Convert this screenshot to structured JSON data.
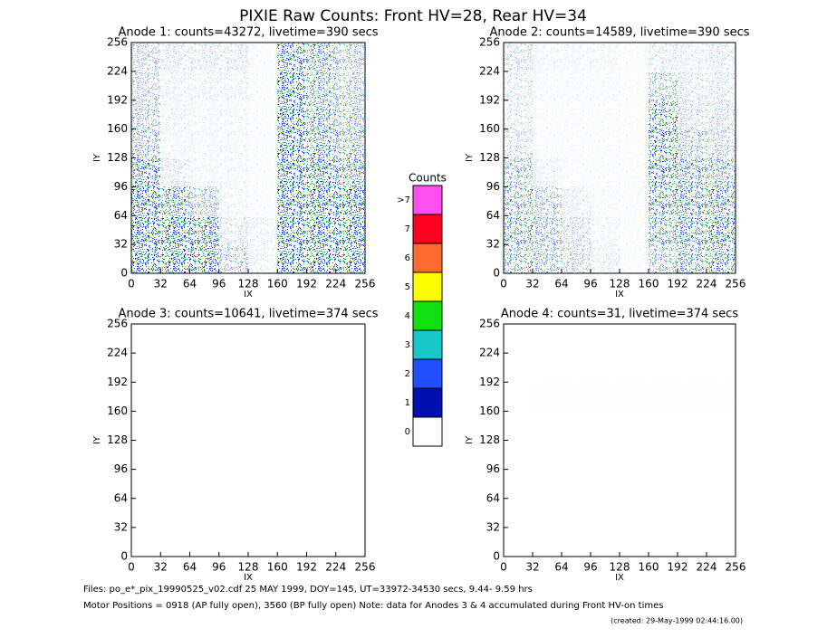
{
  "title": "PIXIE Raw Counts:  Front HV=28, Rear HV=34",
  "chart_data": [
    {
      "type": "heatmap",
      "title": "Anode 1: counts=43272, livetime=390 secs",
      "xlabel": "IX",
      "ylabel": "IY",
      "xlim": [
        0,
        256
      ],
      "ylim": [
        0,
        256
      ],
      "xticks": [
        0,
        32,
        64,
        96,
        128,
        160,
        192,
        224,
        256
      ],
      "yticks": [
        0,
        32,
        64,
        96,
        128,
        160,
        192,
        224,
        256
      ],
      "density": [
        [
          0.25,
          0.15,
          0.15,
          0.15,
          0.05,
          0.55,
          0.45,
          0.3
        ],
        [
          0.25,
          0.1,
          0.1,
          0.1,
          0.05,
          0.6,
          0.4,
          0.3
        ],
        [
          0.3,
          0.1,
          0.08,
          0.08,
          0.05,
          0.7,
          0.45,
          0.35
        ],
        [
          0.35,
          0.08,
          0.08,
          0.08,
          0.05,
          0.8,
          0.5,
          0.4
        ],
        [
          0.55,
          0.15,
          0.08,
          0.08,
          0.05,
          0.85,
          0.6,
          0.5
        ],
        [
          0.65,
          0.5,
          0.3,
          0.08,
          0.05,
          0.85,
          0.75,
          0.65
        ],
        [
          0.8,
          0.65,
          0.55,
          0.15,
          0.1,
          0.9,
          0.8,
          0.75
        ],
        [
          0.8,
          0.7,
          0.6,
          0.3,
          0.1,
          0.9,
          0.85,
          0.8
        ]
      ]
    },
    {
      "type": "heatmap",
      "title": "Anode 2: counts=14589, livetime=390 secs",
      "xlabel": "IX",
      "ylabel": "IY",
      "xlim": [
        0,
        256
      ],
      "ylim": [
        0,
        256
      ],
      "xticks": [
        0,
        32,
        64,
        96,
        128,
        160,
        192,
        224,
        256
      ],
      "yticks": [
        0,
        32,
        64,
        96,
        128,
        160,
        192,
        224,
        256
      ],
      "density": [
        [
          0.2,
          0.08,
          0.08,
          0.08,
          0.04,
          0.15,
          0.12,
          0.15
        ],
        [
          0.15,
          0.06,
          0.06,
          0.06,
          0.04,
          0.3,
          0.15,
          0.15
        ],
        [
          0.15,
          0.05,
          0.05,
          0.05,
          0.04,
          0.5,
          0.2,
          0.2
        ],
        [
          0.2,
          0.05,
          0.05,
          0.05,
          0.04,
          0.55,
          0.3,
          0.25
        ],
        [
          0.35,
          0.1,
          0.05,
          0.05,
          0.05,
          0.55,
          0.45,
          0.4
        ],
        [
          0.4,
          0.3,
          0.12,
          0.06,
          0.05,
          0.5,
          0.5,
          0.5
        ],
        [
          0.45,
          0.35,
          0.2,
          0.08,
          0.05,
          0.45,
          0.5,
          0.55
        ],
        [
          0.4,
          0.35,
          0.25,
          0.12,
          0.05,
          0.35,
          0.45,
          0.5
        ]
      ]
    },
    {
      "type": "heatmap",
      "title": "Anode 3: counts=10641, livetime=374 secs",
      "xlabel": "IX",
      "ylabel": "IY",
      "xlim": [
        0,
        256
      ],
      "ylim": [
        0,
        256
      ],
      "xticks": [
        0,
        32,
        64,
        96,
        128,
        160,
        192,
        224,
        256
      ],
      "yticks": [
        0,
        32,
        64,
        96,
        128,
        160,
        192,
        224,
        256
      ],
      "density": [
        [
          0,
          0,
          0,
          0,
          0,
          0,
          0,
          0
        ],
        [
          0,
          0,
          0,
          0,
          0,
          0,
          0,
          0
        ],
        [
          0,
          0,
          0,
          0,
          0,
          0,
          0,
          0
        ],
        [
          0,
          0,
          0,
          0,
          0,
          0,
          0,
          0
        ],
        [
          0,
          0,
          0,
          0,
          0,
          0,
          0,
          0
        ],
        [
          0,
          0,
          0,
          0,
          0,
          0,
          0,
          0
        ],
        [
          0,
          0,
          0,
          0,
          0,
          0,
          0,
          0
        ],
        [
          0,
          0,
          0,
          0,
          0,
          0,
          0,
          0
        ]
      ]
    },
    {
      "type": "heatmap",
      "title": "Anode 4: counts=31, livetime=374 secs",
      "xlabel": "IX",
      "ylabel": "IY",
      "xlim": [
        0,
        256
      ],
      "ylim": [
        0,
        256
      ],
      "xticks": [
        0,
        32,
        64,
        96,
        128,
        160,
        192,
        224,
        256
      ],
      "yticks": [
        0,
        32,
        64,
        96,
        128,
        160,
        192,
        224,
        256
      ],
      "density": [
        [
          0,
          0,
          0,
          0,
          0,
          0,
          0,
          0
        ],
        [
          0,
          0,
          0,
          0,
          0,
          0,
          0,
          0
        ],
        [
          0,
          0.02,
          0.02,
          0.02,
          0.02,
          0.02,
          0.02,
          0.02
        ],
        [
          0,
          0,
          0,
          0,
          0,
          0,
          0,
          0
        ],
        [
          0,
          0,
          0,
          0,
          0,
          0,
          0,
          0
        ],
        [
          0,
          0,
          0,
          0,
          0,
          0,
          0,
          0
        ],
        [
          0,
          0,
          0,
          0,
          0,
          0,
          0,
          0
        ],
        [
          0,
          0,
          0,
          0,
          0,
          0,
          0,
          0
        ]
      ]
    }
  ],
  "colorbar": {
    "title": "Counts",
    "ticks": [
      0,
      1,
      2,
      3,
      4,
      5,
      6,
      7,
      {
        "value": 8,
        "label": ">7"
      }
    ],
    "colors": [
      "#ffffff",
      "#0010b0",
      "#2050ff",
      "#18c8c8",
      "#10e010",
      "#ffff00",
      "#ff6a30",
      "#ff0020",
      "#ff50f0"
    ]
  },
  "footer": [
    "Files: po_e*_pix_19990525_v02.cdf   25 MAY 1999, DOY=145, UT=33972-34530 secs,  9.44- 9.59 hrs",
    "Motor Positions = 0918 (AP fully open), 3560 (BP fully open)    Note: data for Anodes 3 & 4 accumulated during Front HV-on times",
    "(created: 29-May-1999 02:44:16.00)"
  ]
}
